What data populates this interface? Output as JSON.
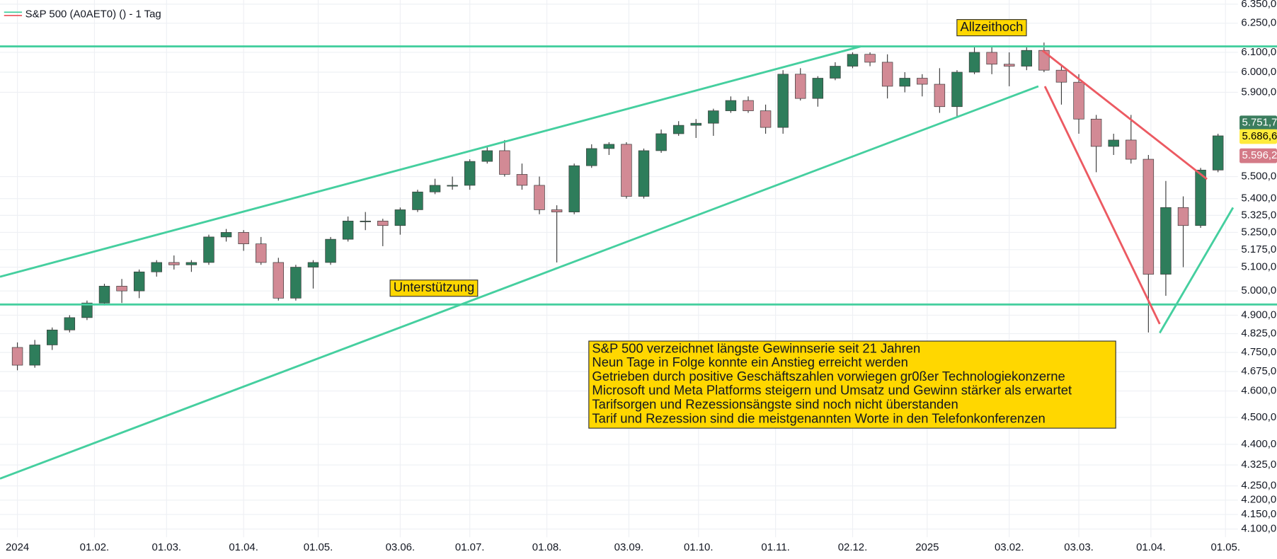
{
  "chart_data": {
    "type": "candlestick",
    "title": "S&P 500 (A0AET0) () - 1 Tag",
    "log_scale": true,
    "grid": true,
    "up_color": "#2e7d5b",
    "down_color": "#d28a95",
    "xlim": [
      "2023-12-25",
      "2025-05-06"
    ],
    "ylim": [
      4072,
      6372
    ],
    "xticks": [
      {
        "value": "2024-01-01",
        "label": "2024"
      },
      {
        "value": "2024-02-01",
        "label": "01.02."
      },
      {
        "value": "2024-03-01",
        "label": "01.03."
      },
      {
        "value": "2024-04-01",
        "label": "01.04."
      },
      {
        "value": "2024-05-01",
        "label": "01.05."
      },
      {
        "value": "2024-06-03",
        "label": "03.06."
      },
      {
        "value": "2024-07-01",
        "label": "01.07."
      },
      {
        "value": "2024-08-01",
        "label": "01.08."
      },
      {
        "value": "2024-09-03",
        "label": "03.09."
      },
      {
        "value": "2024-10-01",
        "label": "01.10."
      },
      {
        "value": "2024-11-01",
        "label": "01.11."
      },
      {
        "value": "2024-12-02",
        "label": "02.12."
      },
      {
        "value": "2025-01-01",
        "label": "2025"
      },
      {
        "value": "2025-02-03",
        "label": "03.02."
      },
      {
        "value": "2025-03-03",
        "label": "03.03."
      },
      {
        "value": "2025-04-01",
        "label": "01.04."
      },
      {
        "value": "2025-05-01",
        "label": "01.05."
      }
    ],
    "yticks": [
      {
        "value": 6350,
        "label": "6.350,0"
      },
      {
        "value": 6250,
        "label": "6.250,0"
      },
      {
        "value": 6100,
        "label": "6.100,0"
      },
      {
        "value": 6000,
        "label": "6.000,0"
      },
      {
        "value": 5900,
        "label": "5.900,0"
      },
      {
        "value": 5500,
        "label": "5.500,0"
      },
      {
        "value": 5400,
        "label": "5.400,0"
      },
      {
        "value": 5325,
        "label": "5.325,0"
      },
      {
        "value": 5250,
        "label": "5.250,0"
      },
      {
        "value": 5175,
        "label": "5.175,0"
      },
      {
        "value": 5100,
        "label": "5.100,0"
      },
      {
        "value": 5000,
        "label": "5.000,0"
      },
      {
        "value": 4900,
        "label": "4.900,0"
      },
      {
        "value": 4825,
        "label": "4.825,0"
      },
      {
        "value": 4750,
        "label": "4.750,0"
      },
      {
        "value": 4675,
        "label": "4.675,0"
      },
      {
        "value": 4600,
        "label": "4.600,0"
      },
      {
        "value": 4500,
        "label": "4.500,0"
      },
      {
        "value": 4400,
        "label": "4.400,0"
      },
      {
        "value": 4325,
        "label": "4.325,0"
      },
      {
        "value": 4250,
        "label": "4.250,0"
      },
      {
        "value": 4200,
        "label": "4.200,0"
      },
      {
        "value": 4150,
        "label": "4.150,0"
      },
      {
        "value": 4100,
        "label": "4.100,0"
      }
    ],
    "x": [
      "2024-01-01",
      "2024-01-08",
      "2024-01-15",
      "2024-01-22",
      "2024-01-29",
      "2024-02-05",
      "2024-02-12",
      "2024-02-19",
      "2024-02-26",
      "2024-03-04",
      "2024-03-11",
      "2024-03-18",
      "2024-03-25",
      "2024-04-01",
      "2024-04-08",
      "2024-04-15",
      "2024-04-22",
      "2024-04-29",
      "2024-05-06",
      "2024-05-13",
      "2024-05-20",
      "2024-05-27",
      "2024-06-03",
      "2024-06-10",
      "2024-06-17",
      "2024-06-24",
      "2024-07-01",
      "2024-07-08",
      "2024-07-15",
      "2024-07-22",
      "2024-07-29",
      "2024-08-05",
      "2024-08-12",
      "2024-08-19",
      "2024-08-26",
      "2024-09-02",
      "2024-09-09",
      "2024-09-16",
      "2024-09-23",
      "2024-09-30",
      "2024-10-07",
      "2024-10-14",
      "2024-10-21",
      "2024-10-28",
      "2024-11-04",
      "2024-11-11",
      "2024-11-18",
      "2024-11-25",
      "2024-12-02",
      "2024-12-09",
      "2024-12-16",
      "2024-12-23",
      "2024-12-30",
      "2025-01-06",
      "2025-01-13",
      "2025-01-20",
      "2025-01-27",
      "2025-02-03",
      "2025-02-10",
      "2025-02-17",
      "2025-02-24",
      "2025-03-03",
      "2025-03-10",
      "2025-03-17",
      "2025-03-24",
      "2025-03-31",
      "2025-04-07",
      "2025-04-14",
      "2025-04-21",
      "2025-04-28"
    ],
    "open": [
      4770,
      4700,
      4780,
      4840,
      4890,
      4950,
      5020,
      5000,
      5080,
      5120,
      5110,
      5120,
      5230,
      5250,
      5200,
      5120,
      4970,
      5100,
      5120,
      5220,
      5300,
      5300,
      5280,
      5350,
      5430,
      5460,
      5460,
      5570,
      5620,
      5510,
      5460,
      5350,
      5340,
      5550,
      5630,
      5650,
      5410,
      5620,
      5700,
      5740,
      5750,
      5810,
      5860,
      5810,
      5730,
      5990,
      5870,
      5970,
      6030,
      6090,
      6050,
      5930,
      5970,
      5940,
      5830,
      6000,
      6100,
      6040,
      6030,
      6110,
      6010,
      5950,
      5770,
      5640,
      5670,
      5580,
      5070,
      5360,
      5280,
      5530
    ],
    "high": [
      4790,
      4800,
      4850,
      4900,
      4960,
      5030,
      5050,
      5090,
      5130,
      5150,
      5130,
      5240,
      5265,
      5260,
      5230,
      5140,
      5110,
      5130,
      5230,
      5320,
      5340,
      5310,
      5360,
      5440,
      5490,
      5500,
      5580,
      5640,
      5670,
      5560,
      5500,
      5370,
      5560,
      5650,
      5660,
      5660,
      5630,
      5720,
      5760,
      5770,
      5820,
      5880,
      5880,
      5840,
      6010,
      6020,
      5980,
      6050,
      6100,
      6100,
      6090,
      6000,
      5990,
      6020,
      6010,
      6130,
      6130,
      6100,
      6130,
      6150,
      6040,
      5990,
      5790,
      5700,
      5790,
      5600,
      5480,
      5410,
      5540,
      5700
    ],
    "low": [
      4680,
      4690,
      4760,
      4830,
      4880,
      4940,
      4950,
      4970,
      5060,
      5090,
      5080,
      5110,
      5210,
      5170,
      5110,
      4960,
      4960,
      5010,
      5110,
      5210,
      5260,
      5190,
      5240,
      5340,
      5420,
      5440,
      5440,
      5560,
      5500,
      5440,
      5330,
      5120,
      5330,
      5540,
      5600,
      5400,
      5400,
      5610,
      5690,
      5680,
      5690,
      5800,
      5800,
      5700,
      5700,
      5860,
      5830,
      5960,
      6020,
      6030,
      5870,
      5900,
      5880,
      5800,
      5780,
      5990,
      5990,
      5930,
      6010,
      6000,
      5840,
      5700,
      5520,
      5600,
      5560,
      4830,
      4980,
      5100,
      5270,
      5520
    ],
    "close": [
      4700,
      4780,
      4840,
      4890,
      4950,
      5020,
      5000,
      5080,
      5120,
      5110,
      5120,
      5230,
      5250,
      5200,
      5120,
      4970,
      5100,
      5120,
      5220,
      5300,
      5300,
      5280,
      5350,
      5430,
      5460,
      5460,
      5570,
      5620,
      5510,
      5460,
      5350,
      5340,
      5550,
      5630,
      5650,
      5410,
      5620,
      5700,
      5740,
      5750,
      5810,
      5860,
      5810,
      5730,
      5990,
      5870,
      5970,
      6030,
      6090,
      6050,
      5930,
      5970,
      5940,
      5830,
      6000,
      6100,
      6040,
      6030,
      6110,
      6010,
      5950,
      5770,
      5640,
      5670,
      5580,
      5070,
      5360,
      5280,
      5530,
      5690
    ],
    "price_labels": [
      {
        "value": 5751.7,
        "label": "5.751,7",
        "color": "#3b7d5e",
        "text_color": "#ffffff"
      },
      {
        "value": 5686.6,
        "label": "5.686,6",
        "color": "#ffeb3b",
        "text_color": "#000000"
      },
      {
        "value": 5596.2,
        "label": "5.596,2",
        "color": "#d47a87",
        "text_color": "#ffffff"
      }
    ],
    "annotations": {
      "ath": "Allzeithoch",
      "support": "Unterstützung",
      "box_lines": [
        "S&P 500 verzeichnet längste Gewinnserie seit 21 Jahren",
        "Neun Tage in Folge konnte ein Anstieg erreicht werden",
        "Getrieben durch positive Geschäftszahlen vorwiegen gr0ßer Technologiekonzerne",
        "Microsoft und Meta Platforms steigern und Umsatz und Gewinn stärker als erwartet",
        "Tarifsorgen und Rezessionsängste sind noch nicht überstanden",
        "Tarif und Rezession sind die meistgenannten Worte in den Telefonkonferenzen"
      ]
    }
  }
}
